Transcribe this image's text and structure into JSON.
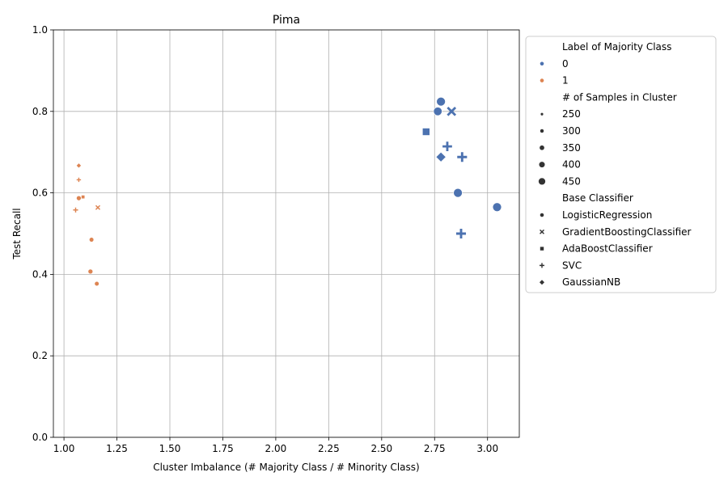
{
  "chart_data": {
    "type": "scatter",
    "title": "Pima",
    "xlabel": "Cluster Imbalance (# Majority Class / # Minority Class)",
    "ylabel": "Test Recall",
    "xlim": [
      0.95,
      3.15
    ],
    "ylim": [
      0.0,
      1.0
    ],
    "xticks": [
      "1.00",
      "1.25",
      "1.50",
      "1.75",
      "2.00",
      "2.25",
      "2.50",
      "2.75",
      "3.00"
    ],
    "yticks": [
      "0.0",
      "0.2",
      "0.4",
      "0.6",
      "0.8",
      "1.0"
    ],
    "grid": true,
    "legend_position": "outside right",
    "colors": {
      "0": "#4c72b0",
      "1": "#dd8452"
    },
    "legend": {
      "hue_title": "Label of Majority Class",
      "hue_items": [
        "0",
        "1"
      ],
      "size_title": "# of Samples in Cluster",
      "size_items": [
        {
          "label": "250",
          "value": 250
        },
        {
          "label": "300",
          "value": 300
        },
        {
          "label": "350",
          "value": 350
        },
        {
          "label": "400",
          "value": 400
        },
        {
          "label": "450",
          "value": 450
        }
      ],
      "style_title": "Base Classifier",
      "style_items": [
        {
          "label": "LogisticRegression",
          "marker": "circle"
        },
        {
          "label": "GradientBoostingClassifier",
          "marker": "x"
        },
        {
          "label": "AdaBoostClassifier",
          "marker": "square"
        },
        {
          "label": "SVC",
          "marker": "plus"
        },
        {
          "label": "GaussianNB",
          "marker": "diamond"
        }
      ]
    },
    "points": [
      {
        "x": 2.78,
        "y": 0.824,
        "label": "0",
        "samples": 460,
        "classifier": "LogisticRegression"
      },
      {
        "x": 2.765,
        "y": 0.8,
        "label": "0",
        "samples": 450,
        "classifier": "LogisticRegression"
      },
      {
        "x": 2.83,
        "y": 0.8,
        "label": "0",
        "samples": 440,
        "classifier": "GradientBoostingClassifier"
      },
      {
        "x": 2.71,
        "y": 0.75,
        "label": "0",
        "samples": 430,
        "classifier": "AdaBoostClassifier"
      },
      {
        "x": 2.81,
        "y": 0.714,
        "label": "0",
        "samples": 440,
        "classifier": "SVC"
      },
      {
        "x": 2.88,
        "y": 0.688,
        "label": "0",
        "samples": 450,
        "classifier": "SVC"
      },
      {
        "x": 2.78,
        "y": 0.688,
        "label": "0",
        "samples": 430,
        "classifier": "GaussianNB"
      },
      {
        "x": 2.86,
        "y": 0.6,
        "label": "0",
        "samples": 460,
        "classifier": "LogisticRegression"
      },
      {
        "x": 3.045,
        "y": 0.565,
        "label": "0",
        "samples": 460,
        "classifier": "LogisticRegression"
      },
      {
        "x": 2.875,
        "y": 0.5,
        "label": "0",
        "samples": 450,
        "classifier": "SVC"
      },
      {
        "x": 1.07,
        "y": 0.667,
        "label": "1",
        "samples": 260,
        "classifier": "GaussianNB"
      },
      {
        "x": 1.07,
        "y": 0.632,
        "label": "1",
        "samples": 260,
        "classifier": "SVC"
      },
      {
        "x": 1.07,
        "y": 0.587,
        "label": "1",
        "samples": 300,
        "classifier": "LogisticRegression"
      },
      {
        "x": 1.09,
        "y": 0.59,
        "label": "1",
        "samples": 250,
        "classifier": "AdaBoostClassifier"
      },
      {
        "x": 1.16,
        "y": 0.564,
        "label": "1",
        "samples": 280,
        "classifier": "GradientBoostingClassifier"
      },
      {
        "x": 1.055,
        "y": 0.558,
        "label": "1",
        "samples": 280,
        "classifier": "SVC"
      },
      {
        "x": 1.13,
        "y": 0.485,
        "label": "1",
        "samples": 290,
        "classifier": "LogisticRegression"
      },
      {
        "x": 1.125,
        "y": 0.407,
        "label": "1",
        "samples": 300,
        "classifier": "LogisticRegression"
      },
      {
        "x": 1.155,
        "y": 0.377,
        "label": "1",
        "samples": 290,
        "classifier": "LogisticRegression"
      }
    ]
  }
}
